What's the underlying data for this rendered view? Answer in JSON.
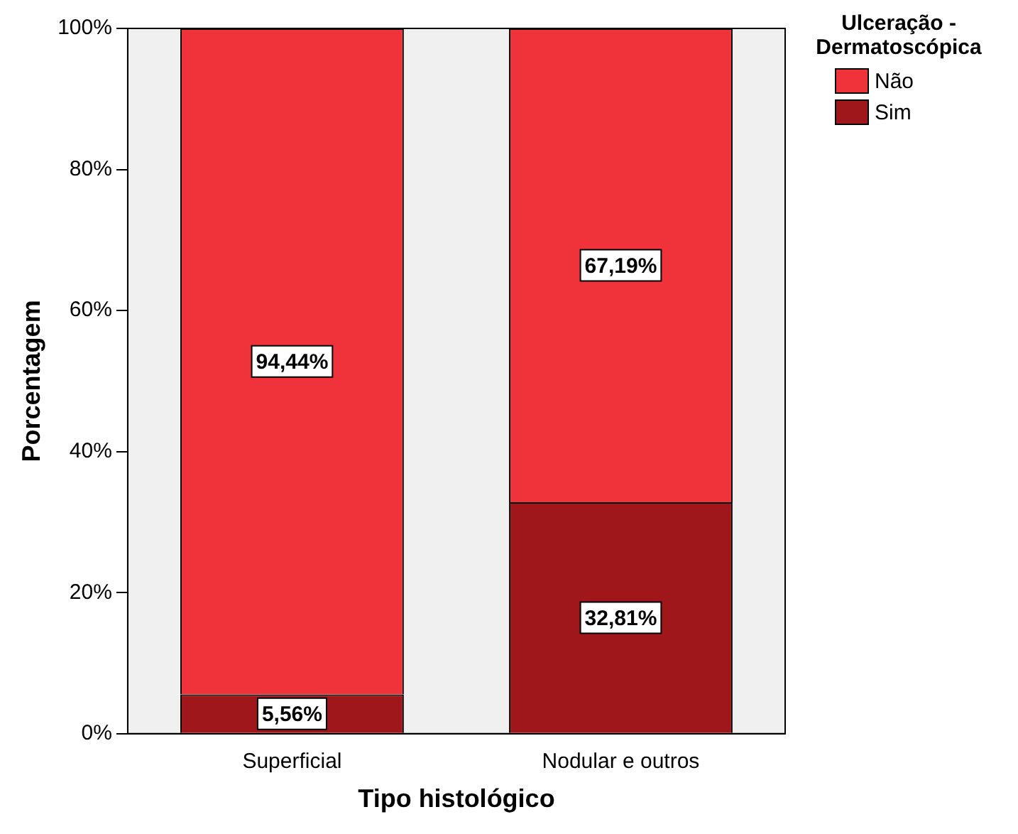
{
  "chart_data": {
    "type": "bar",
    "stacked": true,
    "xlabel": "Tipo histológico",
    "ylabel": "Porcentagem",
    "legend_title": "Ulceração - Dermatoscópica",
    "legend": "top right",
    "categories": [
      "Superficial",
      "Nodular e outros"
    ],
    "series": [
      {
        "name": "Sim",
        "color": "#a0171b",
        "values": [
          5.56,
          32.81
        ],
        "value_labels": [
          "5,56%",
          "32,81%"
        ]
      },
      {
        "name": "Não",
        "color": "#f0333a",
        "values": [
          94.44,
          67.19
        ],
        "value_labels": [
          "94,44%",
          "67,19%"
        ]
      }
    ],
    "ylim": [
      0,
      100
    ],
    "yticks": [
      {
        "value": 0,
        "label": "0%"
      },
      {
        "value": 20,
        "label": "20%"
      },
      {
        "value": 40,
        "label": "40%"
      },
      {
        "value": 60,
        "label": "60%"
      },
      {
        "value": 80,
        "label": "80%"
      },
      {
        "value": 100,
        "label": "100%"
      }
    ],
    "grid": false
  }
}
